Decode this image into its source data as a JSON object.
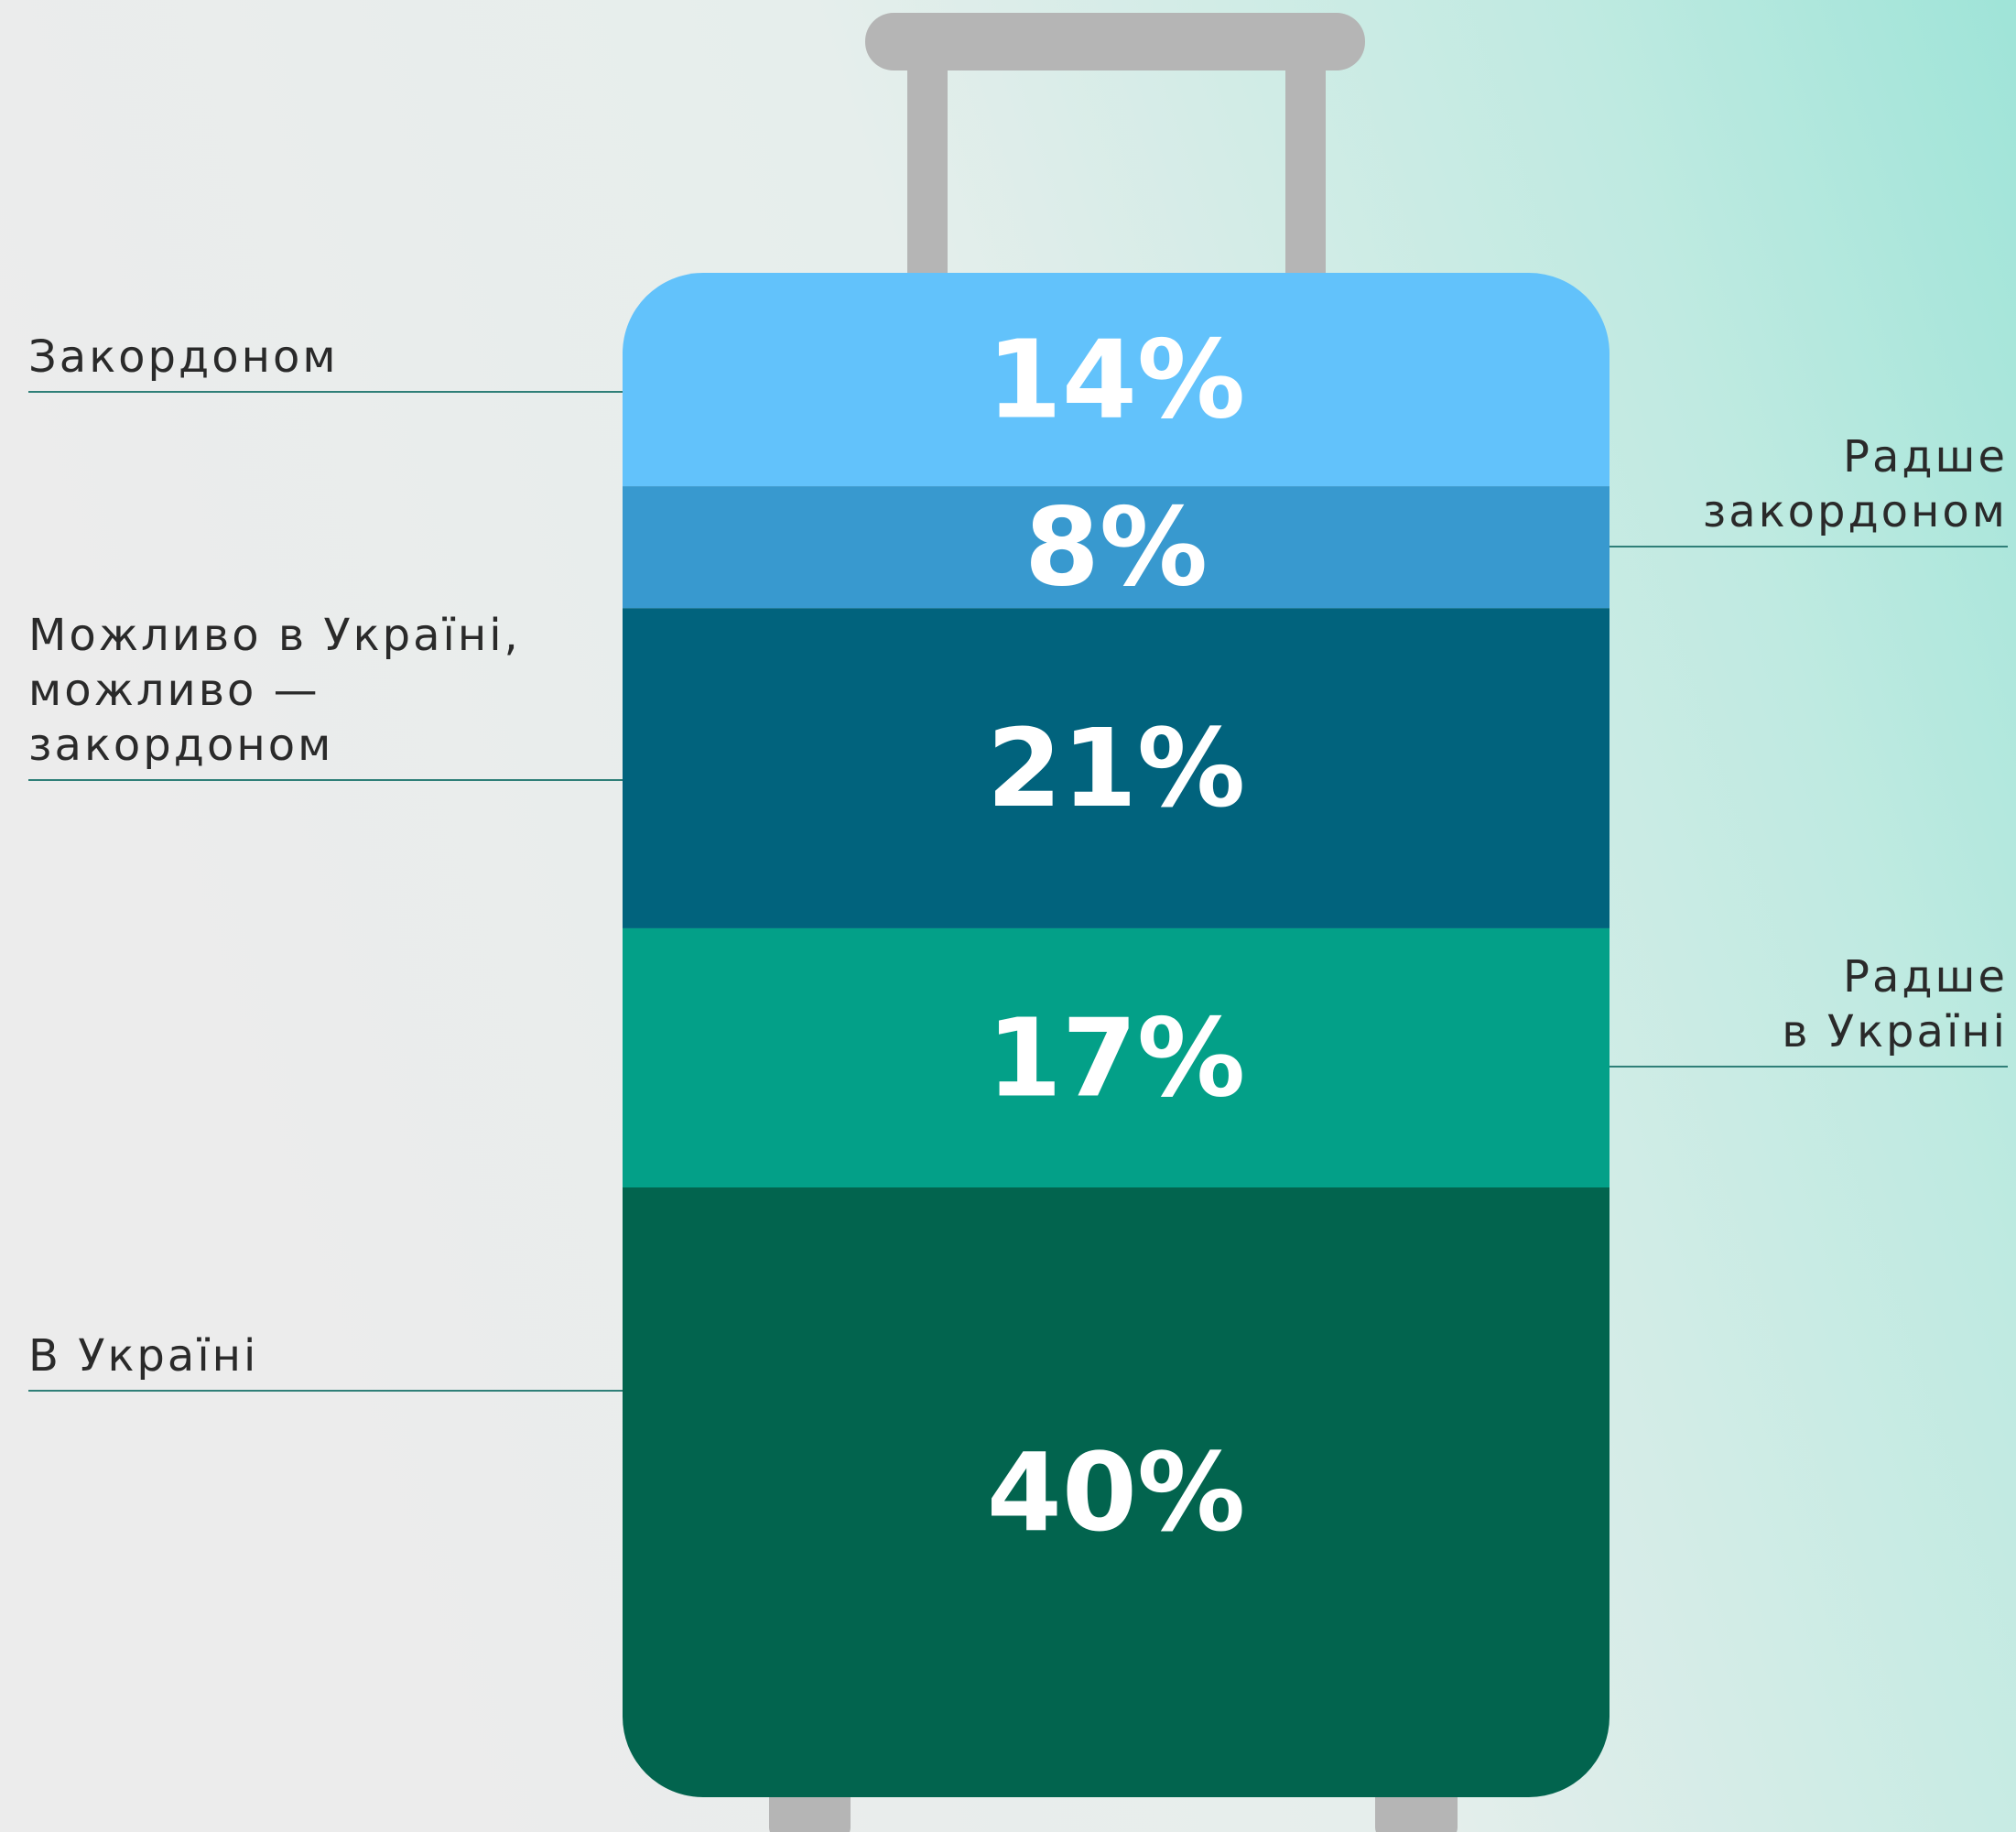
{
  "chart_data": {
    "type": "bar",
    "categories": [
      "Закордоном",
      "Радше\nзакордоном",
      "Можливо в Україні,\nможливо —\nзакордоном",
      "Радше\nв Україні",
      "В Україні"
    ],
    "values": [
      14,
      8,
      21,
      17,
      40
    ],
    "value_labels": [
      "14%",
      "8%",
      "21%",
      "17%",
      "40%"
    ],
    "colors": [
      "#62c2fb",
      "#3899cf",
      "#01637d",
      "#03a088",
      "#02644e"
    ]
  }
}
